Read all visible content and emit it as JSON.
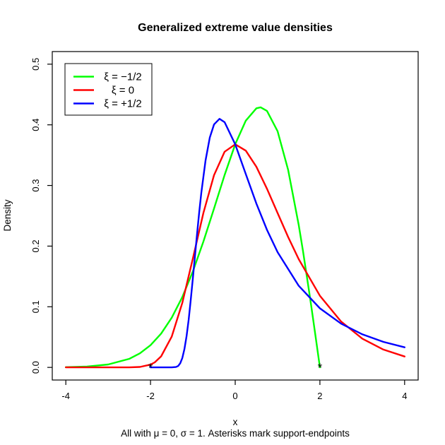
{
  "title": "Generalized extreme value densities",
  "subtitle": "All with μ = 0, σ = 1. Asterisks mark support-endpoints",
  "axes": {
    "x": {
      "label": "x",
      "tick_labels": [
        "-4",
        "-2",
        "0",
        "2",
        "4"
      ],
      "tick_values": [
        -4,
        -2,
        0,
        2,
        4
      ],
      "range": [
        -4,
        4
      ]
    },
    "y": {
      "label": "Density",
      "tick_labels": [
        "0.0",
        "0.1",
        "0.2",
        "0.3",
        "0.4",
        "0.5"
      ],
      "tick_values": [
        0,
        0.1,
        0.2,
        0.3,
        0.4,
        0.5
      ],
      "range": [
        0,
        0.5
      ]
    }
  },
  "legend": {
    "entries": [
      {
        "label": "ξ = −1/2",
        "color": "#00ff00"
      },
      {
        "label": "ξ = 0",
        "color": "#ff0000"
      },
      {
        "label": "ξ = +1/2",
        "color": "#0000ff"
      }
    ]
  },
  "chart_data": {
    "type": "line",
    "title": "Generalized extreme value densities",
    "xlabel": "x",
    "ylabel": "Density",
    "xlim": [
      -4,
      4
    ],
    "ylim": [
      0,
      0.5
    ],
    "grid": false,
    "legend_position": "top-left",
    "series": [
      {
        "name": "ξ = −1/2",
        "color": "#00ff00",
        "points": [
          [
            -4,
            0.0004
          ],
          [
            -3.5,
            0.0014
          ],
          [
            -3,
            0.0048
          ],
          [
            -2.5,
            0.0142
          ],
          [
            -2.25,
            0.0232
          ],
          [
            -2,
            0.0366
          ],
          [
            -1.75,
            0.0557
          ],
          [
            -1.5,
            0.0819
          ],
          [
            -1.25,
            0.1159
          ],
          [
            -1,
            0.1581
          ],
          [
            -0.75,
            0.2076
          ],
          [
            -0.5,
            0.262
          ],
          [
            -0.25,
            0.3173
          ],
          [
            0,
            0.3679
          ],
          [
            0.25,
            0.4069
          ],
          [
            0.5,
            0.4273
          ],
          [
            0.6,
            0.4289
          ],
          [
            0.75,
            0.4229
          ],
          [
            1,
            0.3894
          ],
          [
            1.25,
            0.3258
          ],
          [
            1.5,
            0.2349
          ],
          [
            1.6,
            0.1922
          ],
          [
            1.75,
            0.1231
          ],
          [
            1.8,
            0.099
          ],
          [
            1.9,
            0.0499
          ],
          [
            2,
            0
          ]
        ]
      },
      {
        "name": "ξ = 0",
        "color": "#ff0000",
        "points": [
          [
            -4,
            0
          ],
          [
            -3,
            0
          ],
          [
            -2.5,
            0.0001
          ],
          [
            -2.25,
            0.0007
          ],
          [
            -2,
            0.0046
          ],
          [
            -1.9,
            0.0083
          ],
          [
            -1.75,
            0.0182
          ],
          [
            -1.5,
            0.0507
          ],
          [
            -1.25,
            0.1064
          ],
          [
            -1,
            0.1794
          ],
          [
            -0.75,
            0.2549
          ],
          [
            -0.5,
            0.317
          ],
          [
            -0.25,
            0.3556
          ],
          [
            0,
            0.3679
          ],
          [
            0.25,
            0.3574
          ],
          [
            0.5,
            0.3307
          ],
          [
            0.75,
            0.2945
          ],
          [
            1,
            0.2546
          ],
          [
            1.25,
            0.2151
          ],
          [
            1.5,
            0.1785
          ],
          [
            2,
            0.1182
          ],
          [
            2.5,
            0.0756
          ],
          [
            3,
            0.0474
          ],
          [
            3.5,
            0.0294
          ],
          [
            4,
            0.018
          ]
        ]
      },
      {
        "name": "ξ = +1/2",
        "color": "#0000ff",
        "points": [
          [
            -2,
            0
          ],
          [
            -1.6,
            0
          ],
          [
            -1.5,
            0
          ],
          [
            -1.4,
            0.0006
          ],
          [
            -1.35,
            0.0023
          ],
          [
            -1.3,
            0.0067
          ],
          [
            -1.25,
            0.0154
          ],
          [
            -1.2,
            0.0302
          ],
          [
            -1.15,
            0.0513
          ],
          [
            -1.1,
            0.0787
          ],
          [
            -1.05,
            0.1109
          ],
          [
            -1,
            0.1465
          ],
          [
            -0.95,
            0.1835
          ],
          [
            -0.9,
            0.2203
          ],
          [
            -0.85,
            0.2555
          ],
          [
            -0.8,
            0.2879
          ],
          [
            -0.7,
            0.3413
          ],
          [
            -0.6,
            0.3789
          ],
          [
            -0.5,
            0.4006
          ],
          [
            -0.37,
            0.4099
          ],
          [
            -0.25,
            0.4043
          ],
          [
            0,
            0.3679
          ],
          [
            0.25,
            0.3187
          ],
          [
            0.5,
            0.27
          ],
          [
            0.75,
            0.2267
          ],
          [
            1,
            0.19
          ],
          [
            1.5,
            0.1346
          ],
          [
            2,
            0.0974
          ],
          [
            2.5,
            0.0721
          ],
          [
            3,
            0.0545
          ],
          [
            3.5,
            0.0421
          ],
          [
            4,
            0.0331
          ]
        ]
      }
    ],
    "markers": [
      {
        "x": -2,
        "y": 0,
        "symbol": "*",
        "color": "#0000ff",
        "meaning": "support endpoint of ξ = +1/2"
      },
      {
        "x": 2,
        "y": 0,
        "symbol": "*",
        "color": "#00ff00",
        "meaning": "support endpoint of ξ = −1/2"
      }
    ]
  }
}
